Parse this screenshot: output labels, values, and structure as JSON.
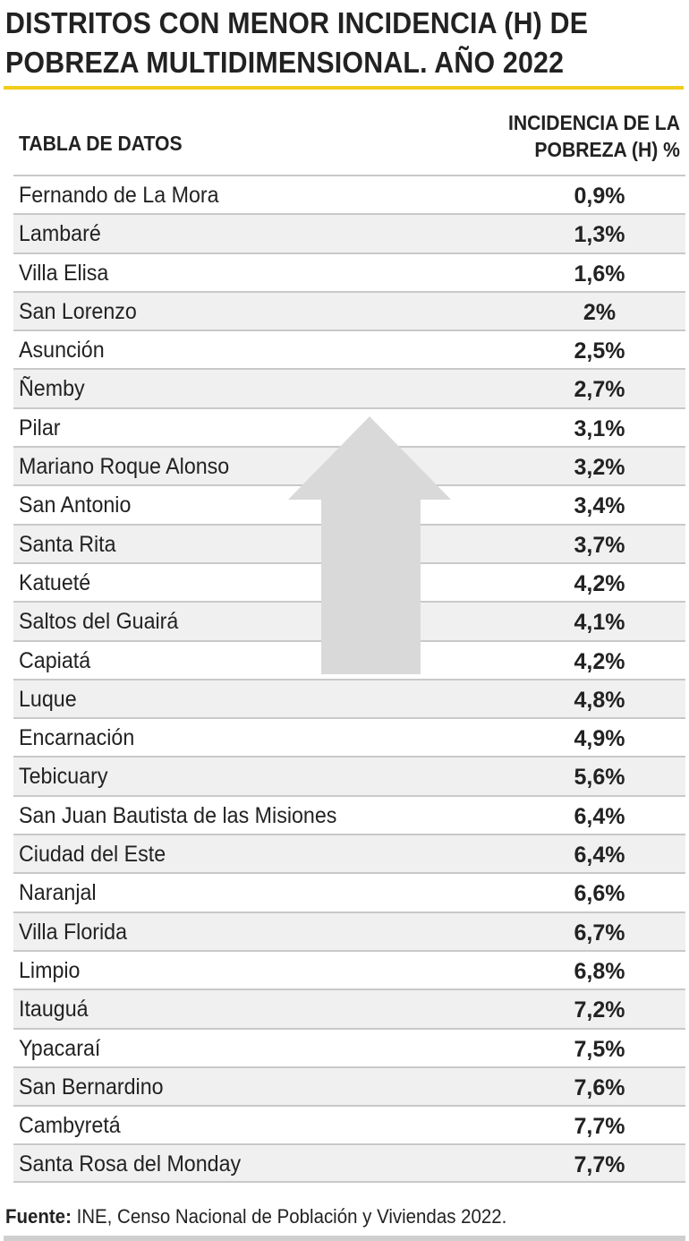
{
  "title": {
    "line1": "DISTRITOS CON MENOR INCIDENCIA (H) DE",
    "line2": "POBREZA MULTIDIMENSIONAL. AÑO 2022"
  },
  "table": {
    "header_left": "TABLA DE DATOS",
    "header_right_line1": "INCIDENCIA DE LA",
    "header_right_line2": "POBREZA (H) %"
  },
  "chart_data": {
    "type": "table",
    "title": "DISTRITOS CON MENOR INCIDENCIA (H) DE POBREZA MULTIDIMENSIONAL. AÑO 2022",
    "columns": [
      "TABLA DE DATOS",
      "INCIDENCIA DE LA POBREZA (H) %"
    ],
    "rows": [
      {
        "district": "Fernando de La Mora",
        "value_label": "0,9%",
        "value": 0.9
      },
      {
        "district": "Lambaré",
        "value_label": "1,3%",
        "value": 1.3
      },
      {
        "district": "Villa Elisa",
        "value_label": "1,6%",
        "value": 1.6
      },
      {
        "district": "San Lorenzo",
        "value_label": "2%",
        "value": 2.0
      },
      {
        "district": "Asunción",
        "value_label": "2,5%",
        "value": 2.5
      },
      {
        "district": "Ñemby",
        "value_label": "2,7%",
        "value": 2.7
      },
      {
        "district": "Pilar",
        "value_label": "3,1%",
        "value": 3.1
      },
      {
        "district": "Mariano Roque Alonso",
        "value_label": "3,2%",
        "value": 3.2
      },
      {
        "district": "San Antonio",
        "value_label": "3,4%",
        "value": 3.4
      },
      {
        "district": "Santa Rita",
        "value_label": "3,7%",
        "value": 3.7
      },
      {
        "district": "Katueté",
        "value_label": "4,2%",
        "value": 4.2
      },
      {
        "district": "Saltos del Guairá",
        "value_label": "4,1%",
        "value": 4.1
      },
      {
        "district": "Capiatá",
        "value_label": "4,2%",
        "value": 4.2
      },
      {
        "district": "Luque",
        "value_label": "4,8%",
        "value": 4.8
      },
      {
        "district": "Encarnación",
        "value_label": "4,9%",
        "value": 4.9
      },
      {
        "district": "Tebicuary",
        "value_label": "5,6%",
        "value": 5.6
      },
      {
        "district": "San Juan Bautista de las Misiones",
        "value_label": "6,4%",
        "value": 6.4
      },
      {
        "district": "Ciudad del Este",
        "value_label": "6,4%",
        "value": 6.4
      },
      {
        "district": "Naranjal",
        "value_label": "6,6%",
        "value": 6.6
      },
      {
        "district": "Villa Florida",
        "value_label": "6,7%",
        "value": 6.7
      },
      {
        "district": "Limpio",
        "value_label": "6,8%",
        "value": 6.8
      },
      {
        "district": "Itauguá",
        "value_label": "7,2%",
        "value": 7.2
      },
      {
        "district": "Ypacaraí",
        "value_label": "7,5%",
        "value": 7.5
      },
      {
        "district": "San Bernardino",
        "value_label": "7,6%",
        "value": 7.6
      },
      {
        "district": "Cambyretá",
        "value_label": "7,7%",
        "value": 7.7
      },
      {
        "district": "Santa Rosa del Monday",
        "value_label": "7,7%",
        "value": 7.7
      }
    ]
  },
  "colors": {
    "accent_rule": "#f2cc1a",
    "row_stripe": "#f0f0f0",
    "arrow": "#d9d9d9"
  },
  "icons": {
    "arrow": "up-arrow-icon"
  },
  "source": {
    "label": "Fuente:",
    "text": " INE, Censo Nacional de Población y Viviendas 2022."
  }
}
